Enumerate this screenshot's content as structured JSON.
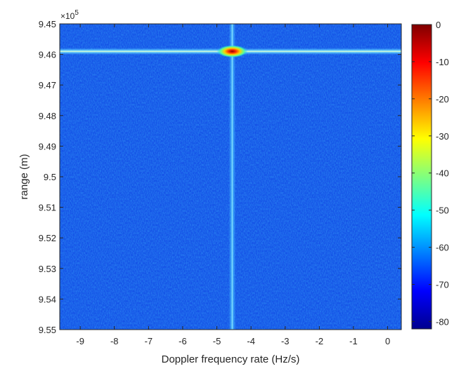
{
  "chart_data": {
    "type": "heatmap",
    "title": "",
    "xlabel": "Doppler frequency rate (Hz/s)",
    "ylabel": "range (m)",
    "y_exponent_label": "×10^5",
    "y_exponent_base": "×10",
    "y_exponent_power": "5",
    "xlim": [
      -9.6,
      0.4
    ],
    "ylim": [
      9.45,
      9.55
    ],
    "y_reversed": true,
    "x_ticks": [
      -9,
      -8,
      -7,
      -6,
      -5,
      -4,
      -3,
      -2,
      -1,
      0
    ],
    "x_tick_labels": [
      "-9",
      "-8",
      "-7",
      "-6",
      "-5",
      "-4",
      "-3",
      "-2",
      "-1",
      "0"
    ],
    "y_ticks": [
      9.45,
      9.46,
      9.47,
      9.48,
      9.49,
      9.5,
      9.51,
      9.52,
      9.53,
      9.54,
      9.55
    ],
    "y_tick_labels": [
      "9.45",
      "9.46",
      "9.47",
      "9.48",
      "9.49",
      "9.5",
      "9.51",
      "9.52",
      "9.53",
      "9.54",
      "9.55"
    ],
    "colorbar": {
      "colormap": "jet",
      "range": [
        -82,
        0
      ],
      "ticks": [
        0,
        -10,
        -20,
        -30,
        -40,
        -50,
        -60,
        -70,
        -80
      ],
      "tick_labels": [
        "0",
        "-10",
        "-20",
        "-30",
        "-40",
        "-50",
        "-60",
        "-70",
        "-80"
      ]
    },
    "background_level_db": -68,
    "peak": {
      "x": -4.55,
      "y": 9.459,
      "value_db": 0
    },
    "ridges": [
      {
        "orientation": "horizontal",
        "at_y": 9.459,
        "level_db": -50
      },
      {
        "orientation": "vertical",
        "at_x": -4.55,
        "level_db": -55
      }
    ],
    "grid": false
  }
}
